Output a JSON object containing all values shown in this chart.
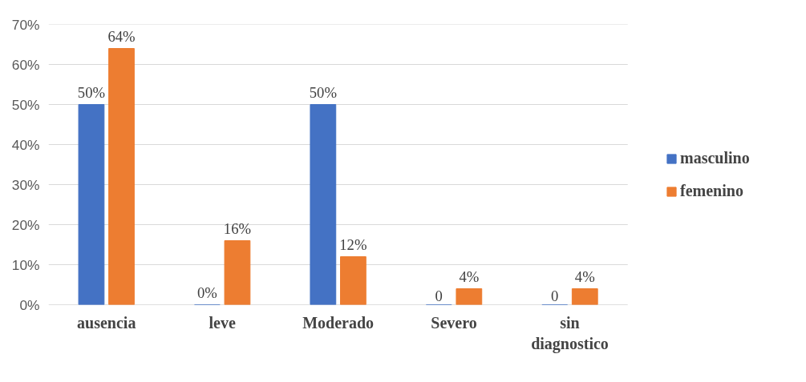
{
  "chart_data": {
    "type": "bar",
    "categories": [
      "ausencia",
      "leve",
      "Moderado",
      "Severo",
      "sin diagnostico"
    ],
    "series": [
      {
        "name": "masculino",
        "color": "#4472c4",
        "values": [
          50,
          0,
          50,
          0,
          0
        ],
        "value_labels": [
          "50%",
          "0%",
          "50%",
          "0",
          "0"
        ]
      },
      {
        "name": "femenino",
        "color": "#ed7d31",
        "values": [
          64,
          16,
          12,
          4,
          4
        ],
        "value_labels": [
          "64%",
          "16%",
          "12%",
          "4%",
          "4%"
        ]
      }
    ],
    "ylim": [
      0,
      70
    ],
    "yticks": [
      {
        "value": 0,
        "label": "0%"
      },
      {
        "value": 10,
        "label": "10%"
      },
      {
        "value": 20,
        "label": "20%"
      },
      {
        "value": 30,
        "label": "30%"
      },
      {
        "value": 40,
        "label": "40%"
      },
      {
        "value": 50,
        "label": "50%"
      },
      {
        "value": 60,
        "label": "60%"
      },
      {
        "value": 70,
        "label": "70%"
      }
    ],
    "grid": "y",
    "legend": "right"
  }
}
